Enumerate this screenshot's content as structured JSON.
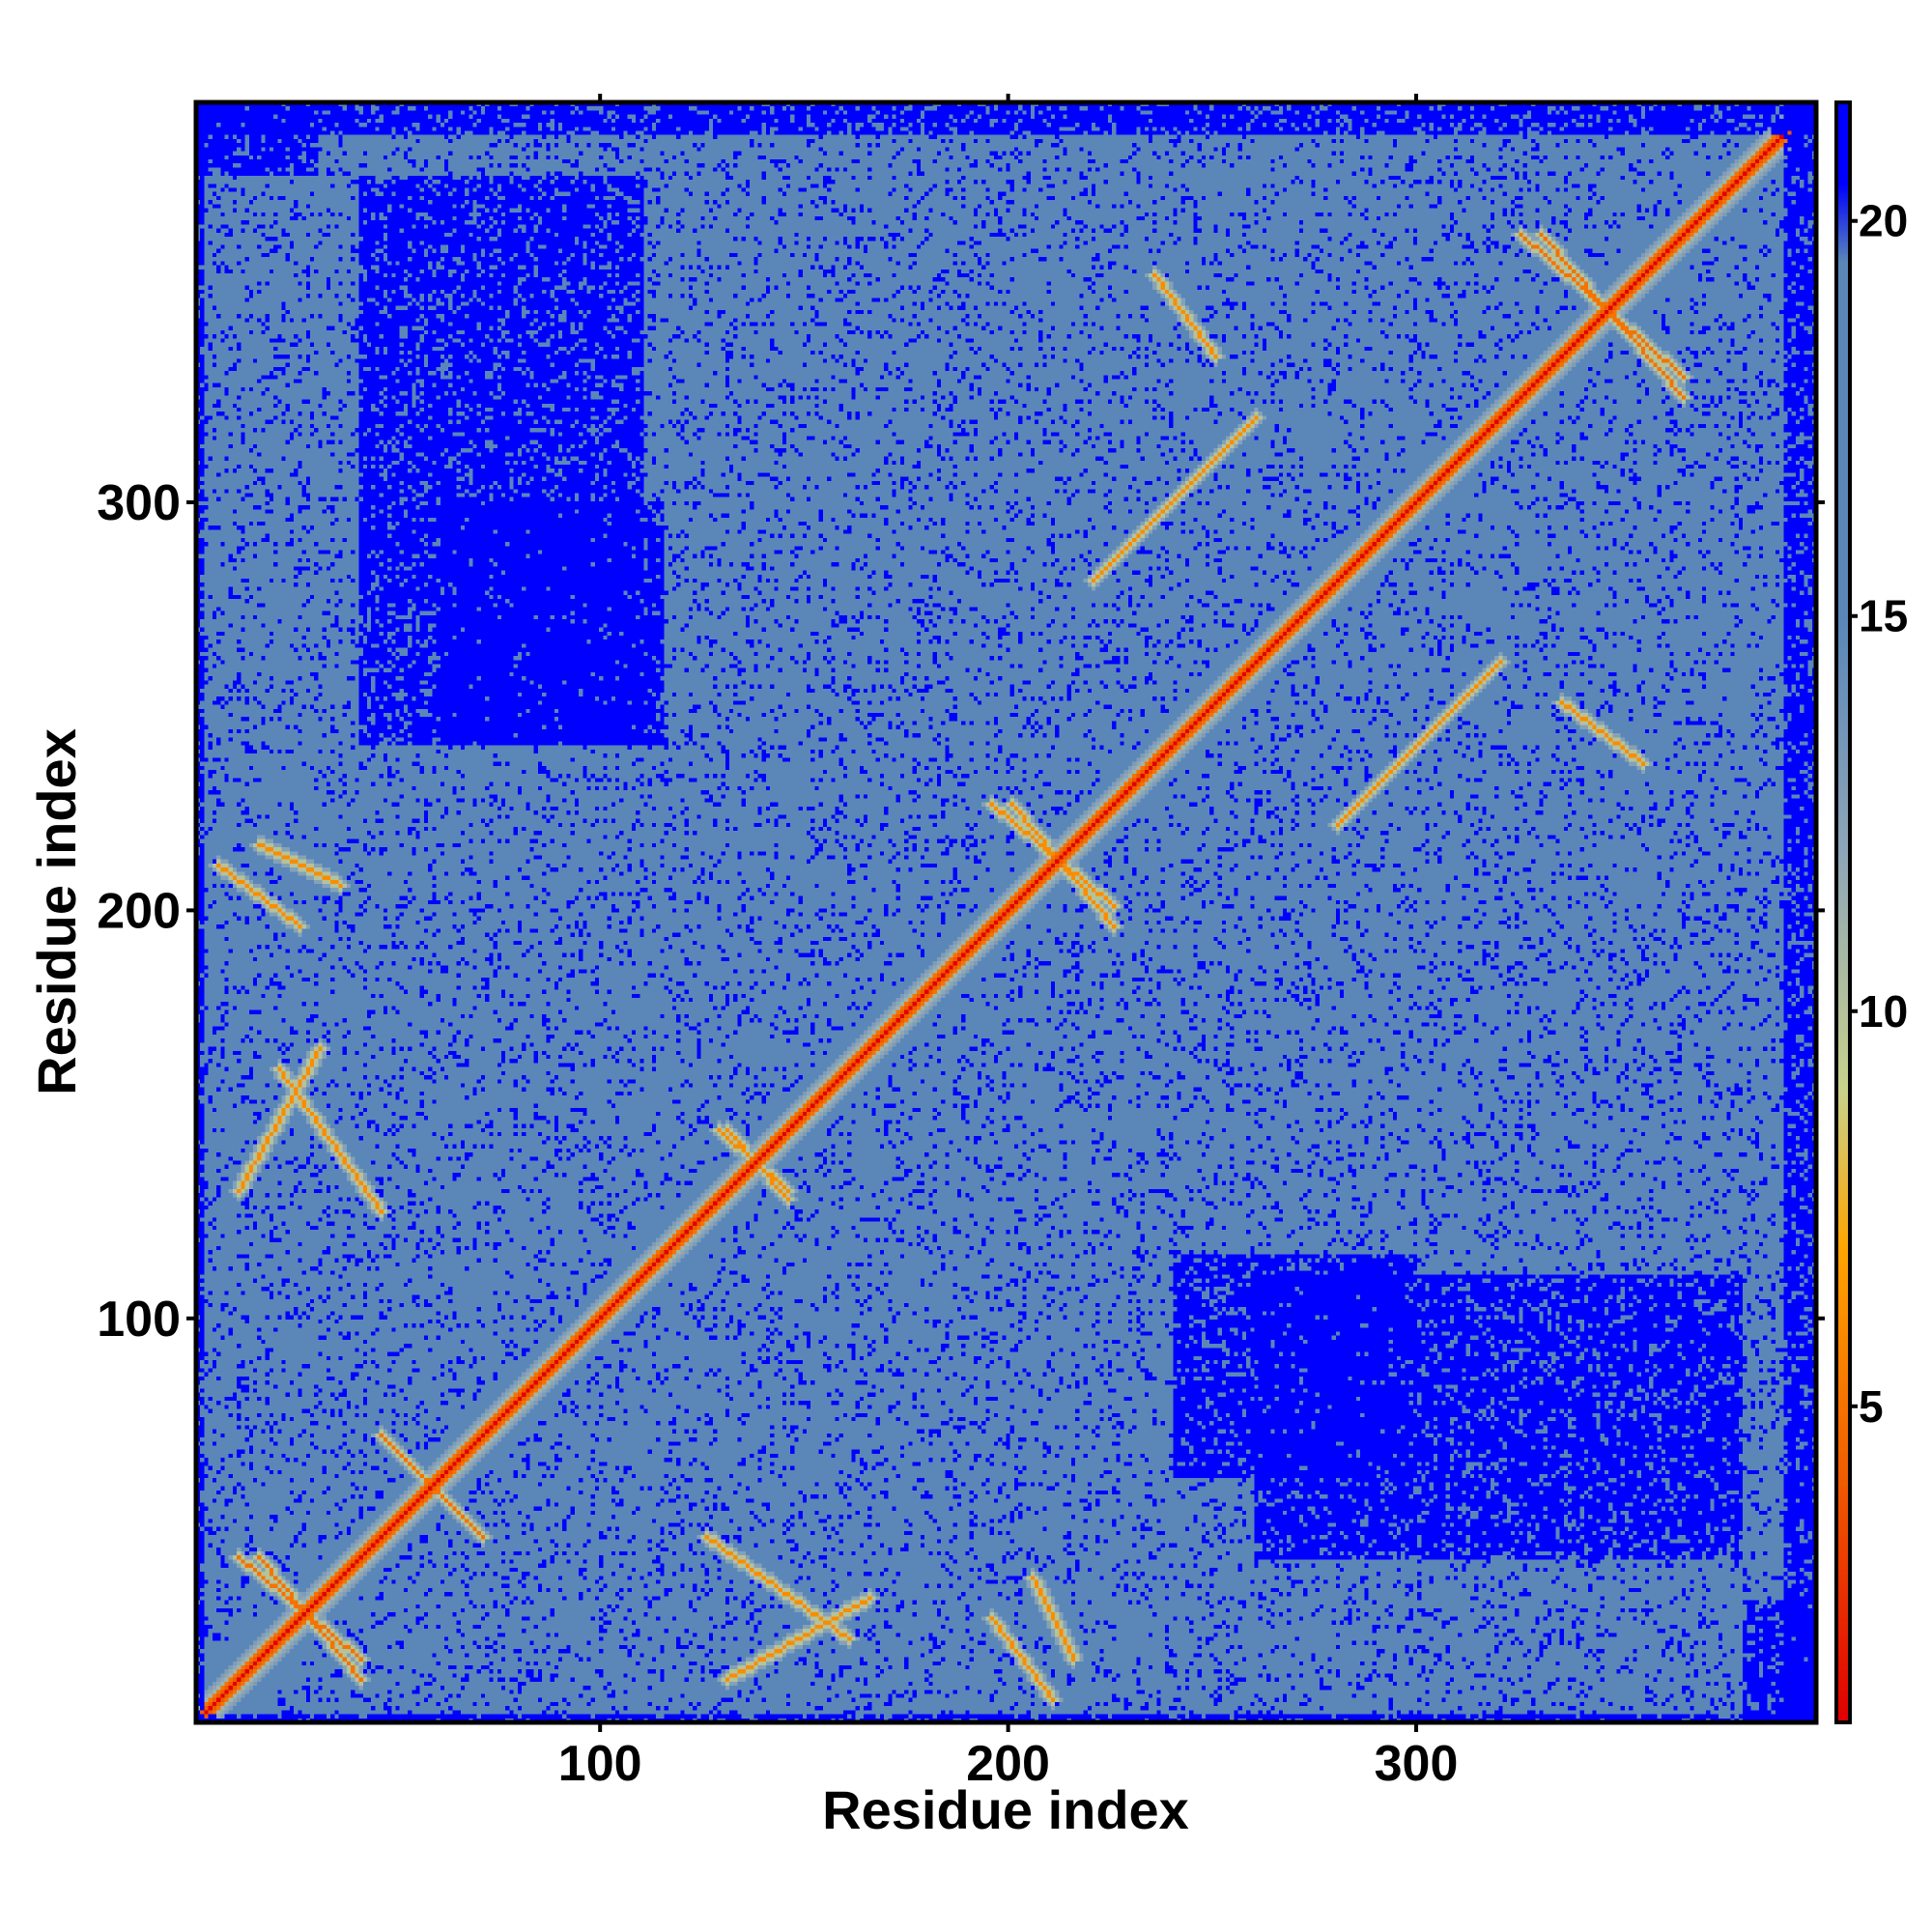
{
  "chart_data": {
    "type": "heatmap",
    "title": "",
    "xlabel": "Residue index",
    "ylabel": "Residue index",
    "xlim": [
      1,
      398
    ],
    "ylim": [
      1,
      398
    ],
    "n_residues": 398,
    "x_ticks": [
      100,
      200,
      300
    ],
    "y_ticks": [
      100,
      200,
      300
    ],
    "x_tick_labels": [
      "100",
      "200",
      "300"
    ],
    "y_tick_labels": [
      "100",
      "200",
      "300"
    ],
    "colorbar": {
      "range": [
        1,
        21.5
      ],
      "ticks": [
        5,
        10,
        15,
        20
      ],
      "tick_labels": [
        "5",
        "10",
        "15",
        "20"
      ],
      "color_stops": [
        {
          "value": 1,
          "color": "#e00000"
        },
        {
          "value": 4,
          "color": "#f05a00"
        },
        {
          "value": 7,
          "color": "#ffa500"
        },
        {
          "value": 9,
          "color": "#c8d28c"
        },
        {
          "value": 12,
          "color": "#8ea6b8"
        },
        {
          "value": 15,
          "color": "#5a87b8"
        },
        {
          "value": 19.5,
          "color": "#5a87b8"
        },
        {
          "value": 20.5,
          "color": "#0000ff"
        },
        {
          "value": 21.5,
          "color": "#0000ff"
        }
      ]
    },
    "values_description_cap_value": 21,
    "diagonal_value": 1,
    "contact_bands": [
      {
        "i": [
          10,
          40
        ],
        "j": [
          15,
          40
        ],
        "orientation": "anti",
        "value": 5
      },
      {
        "i": [
          45,
          65
        ],
        "j": [
          50,
          70
        ],
        "orientation": "anti",
        "value": 5
      },
      {
        "i": [
          128,
          145
        ],
        "j": [
          130,
          145
        ],
        "orientation": "anti",
        "value": 6
      },
      {
        "i": [
          195,
          225
        ],
        "j": [
          200,
          225
        ],
        "orientation": "anti",
        "value": 6
      },
      {
        "i": [
          325,
          365
        ],
        "j": [
          330,
          365
        ],
        "orientation": "anti",
        "value": 5
      },
      {
        "i": [
          130,
          165
        ],
        "j": [
          10,
          30
        ],
        "orientation": "parallel",
        "value": 6
      },
      {
        "i": [
          205,
          215
        ],
        "j": [
          15,
          35
        ],
        "orientation": "anti",
        "value": 6
      },
      {
        "i": [
          230,
          260
        ],
        "j": [
          290,
          320
        ],
        "orientation": "parallel",
        "value": 6
      },
      {
        "i": [
          280,
          320
        ],
        "j": [
          220,
          260
        ],
        "orientation": "parallel",
        "value": 6
      },
      {
        "i": [
          335,
          355
        ],
        "j": [
          235,
          250
        ],
        "orientation": "anti",
        "value": 6
      },
      {
        "i": [
          5,
          25
        ],
        "j": [
          195,
          210
        ],
        "orientation": "anti",
        "value": 6
      },
      {
        "i": [
          20,
          45
        ],
        "j": [
          125,
          160
        ],
        "orientation": "anti",
        "value": 6
      }
    ],
    "empty_regions": [
      {
        "i": [
          40,
          110
        ],
        "j": [
          260,
          380
        ],
        "value": 21
      },
      {
        "i": [
          240,
          380
        ],
        "j": [
          40,
          110
        ],
        "value": 21
      },
      {
        "i": [
          60,
          115
        ],
        "j": [
          240,
          300
        ],
        "value": 21
      },
      {
        "i": [
          240,
          300
        ],
        "j": [
          60,
          115
        ],
        "value": 21
      },
      {
        "i": [
          0,
          30
        ],
        "j": [
          380,
          398
        ],
        "value": 21
      },
      {
        "i": [
          380,
          398
        ],
        "j": [
          0,
          30
        ],
        "value": 21
      },
      {
        "i": [
          390,
          398
        ],
        "j": [
          0,
          398
        ],
        "value": 21
      },
      {
        "i": [
          0,
          398
        ],
        "j": [
          390,
          398
        ],
        "value": 21
      },
      {
        "i": [
          0,
          2
        ],
        "j": [
          0,
          398
        ],
        "value": 21
      },
      {
        "i": [
          0,
          398
        ],
        "j": [
          0,
          2
        ],
        "value": 21
      }
    ]
  }
}
